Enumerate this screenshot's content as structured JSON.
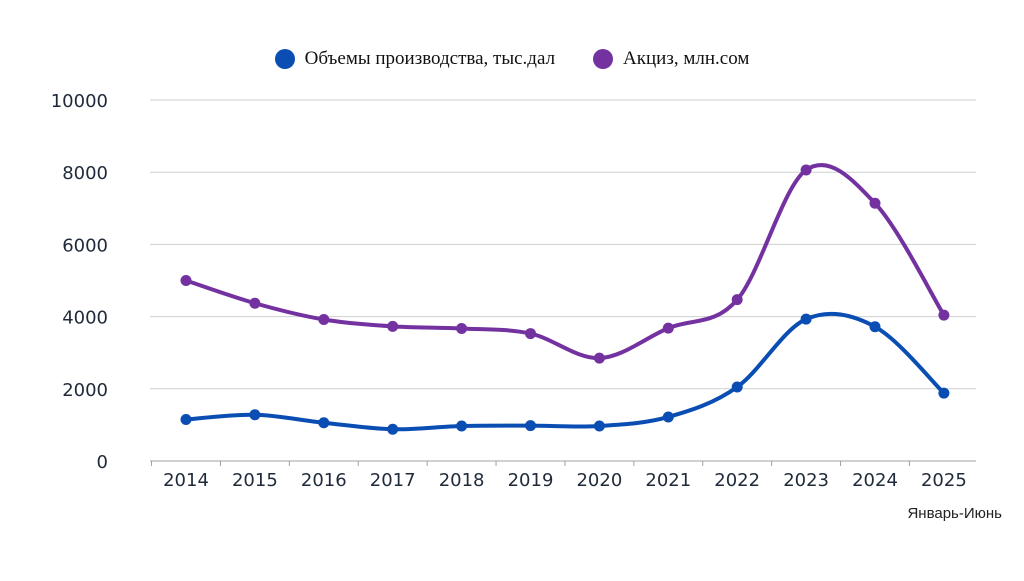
{
  "chart_data": {
    "type": "line",
    "categories": [
      "2014",
      "2015",
      "2016",
      "2017",
      "2018",
      "2019",
      "2020",
      "2021",
      "2022",
      "2023",
      "2024",
      "2025"
    ],
    "series": [
      {
        "name": "Объемы производства, тыс.дал",
        "color": "#0a4db3",
        "values": [
          1150,
          1280,
          1060,
          880,
          970,
          980,
          970,
          1220,
          2050,
          3930,
          3720,
          1880
        ]
      },
      {
        "name": "Акциз, млн.сом",
        "color": "#7332a0",
        "values": [
          5000,
          4370,
          3920,
          3730,
          3670,
          3530,
          2850,
          3680,
          4470,
          8060,
          7140,
          4040
        ]
      }
    ],
    "ylim": [
      0,
      10000
    ],
    "yticks": [
      0,
      2000,
      4000,
      6000,
      8000,
      10000
    ],
    "grid": true,
    "legend_position": "top",
    "note": "Январь-Июнь"
  }
}
